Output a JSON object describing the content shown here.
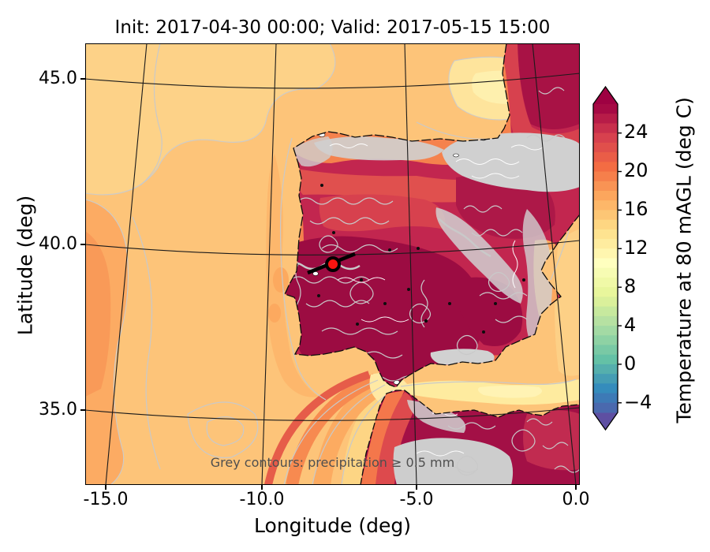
{
  "figure": {
    "title": "Init: 2017-04-30 00:00; Valid: 2017-05-15 15:00",
    "xlabel": "Longitude (deg)",
    "ylabel": "Latitude (deg)",
    "annotation": "Grey contours: precipitation ≥ 0.5 mm"
  },
  "axes": {
    "xticks": [
      "-15.0",
      "-10.0",
      "-5.0",
      "0.0"
    ],
    "yticks": [
      "45.0",
      "40.0",
      "35.0"
    ]
  },
  "colorbar": {
    "label": "Temperature at 80 mAGL (deg C)",
    "ticks": [
      "24",
      "20",
      "16",
      "12",
      "8",
      "4",
      "0",
      "−4"
    ],
    "arrow_top_color": "#9e0142",
    "arrow_bottom_color": "#5e4fa2",
    "band_colors": [
      "#a60a44",
      "#b71c48",
      "#c82f4c",
      "#d7414e",
      "#e04f4b",
      "#ea5d47",
      "#f36c43",
      "#f67f4b",
      "#f99354",
      "#fca65d",
      "#fdb769",
      "#fdc675",
      "#fed682",
      "#fee390",
      "#feec9f",
      "#fff6af",
      "#ffffbf",
      "#f7fcb3",
      "#f0f9a7",
      "#e8f69c",
      "#daf09b",
      "#c7e99e",
      "#b6e1a2",
      "#a3daa4",
      "#8ed2a4",
      "#79c9a5",
      "#64c1a6",
      "#55afad",
      "#459db4",
      "#358cbc",
      "#3d7ab6",
      "#4a69ae"
    ]
  },
  "marker": {
    "color": "#fb1410",
    "lon": -7.7,
    "lat": 39.7
  },
  "chart_data": {
    "type": "heatmap",
    "title": "Init: 2017-04-30 00:00; Valid: 2017-05-15 15:00",
    "xlabel": "Longitude (deg)",
    "ylabel": "Latitude (deg)",
    "xticks": [
      -15.0,
      -10.0,
      -5.0,
      0.0
    ],
    "yticks": [
      35.0,
      40.0,
      45.0
    ],
    "xlim": [
      -15.7,
      0.2
    ],
    "ylim": [
      32.7,
      46.3
    ],
    "projection": "Lambert conformal (slanted meridians, curved parallels)",
    "region": "Iberian Peninsula, Bay of Biscay, SW France, NW Africa, western Mediterranean",
    "field": "Temperature at 80 mAGL (deg C)",
    "colormap": "Spectral reversed, discrete 1-degree bands, extend both",
    "colorbar_ticks": [
      24,
      20,
      16,
      12,
      8,
      4,
      0,
      -4
    ],
    "colorbar_range": [
      -5,
      27
    ],
    "overlay_contours": "grey contours = precipitation ≥ 0.5 mm",
    "graticule": {
      "meridians_deg": [
        -15,
        -10,
        -5,
        0
      ],
      "parallels_deg": [
        35,
        40,
        45
      ]
    },
    "marker": {
      "lon": -7.7,
      "lat": 39.7,
      "style": "red filled circle with black ring"
    },
    "approx_values": [
      {
        "area": "NE Atlantic ocean (west)",
        "temp_C": "13-16"
      },
      {
        "area": "Bay of Biscay",
        "temp_C": "12-15"
      },
      {
        "area": "interior Iberia (Extremadura/Andalusia)",
        "temp_C": "25-27+"
      },
      {
        "area": "northern Iberia coast",
        "temp_C": "17-20"
      },
      {
        "area": "Mediterranean / Alboran Sea",
        "temp_C": "9-17"
      },
      {
        "area": "North Africa interior",
        "temp_C": "25-27+"
      },
      {
        "area": "SW France",
        "temp_C": "22-27"
      }
    ]
  }
}
